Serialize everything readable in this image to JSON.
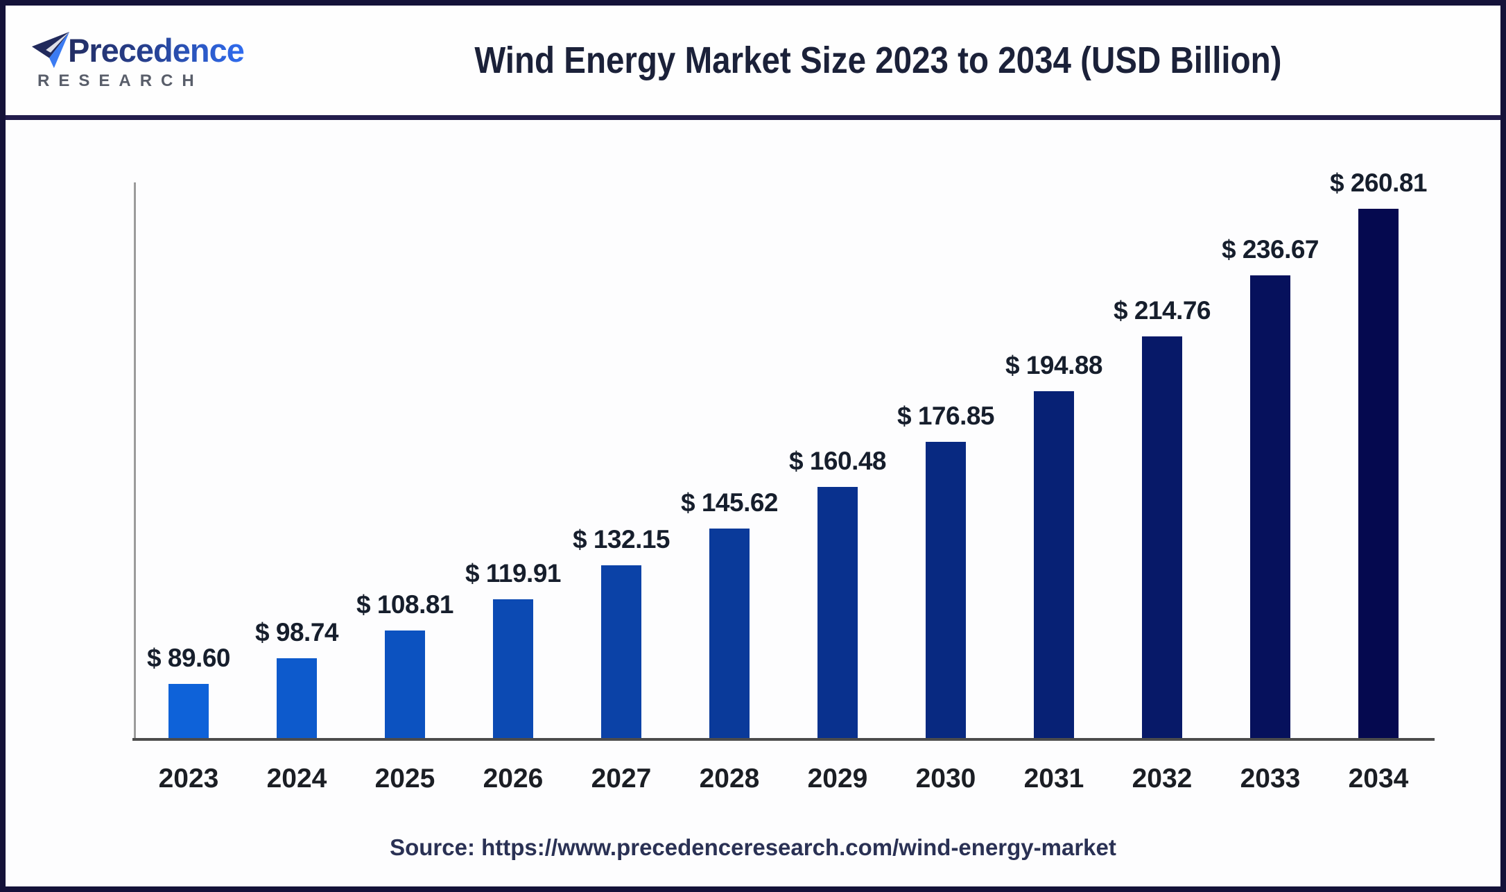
{
  "brand": {
    "name": "Precedence",
    "subname": "RESEARCH"
  },
  "header": {
    "title": "Wind Energy Market Size 2023 to 2034 (USD Billion)"
  },
  "source": {
    "text": "Source: https://www.precedenceresearch.com/wind-energy-market"
  },
  "chart_data": {
    "type": "bar",
    "title": "Wind Energy Market Size 2023 to 2034 (USD Billion)",
    "unit": "USD Billion",
    "categories": [
      "2023",
      "2024",
      "2025",
      "2026",
      "2027",
      "2028",
      "2029",
      "2030",
      "2031",
      "2032",
      "2033",
      "2034"
    ],
    "values": [
      89.6,
      98.74,
      108.81,
      119.91,
      132.15,
      145.62,
      160.48,
      176.85,
      194.88,
      214.76,
      236.67,
      260.81
    ],
    "value_prefix": "$ ",
    "xlabel": "",
    "ylabel": "",
    "ylim": [
      70,
      270
    ],
    "grid": false,
    "legend": false,
    "bar_color_start": "#0E62D9",
    "bar_color_end": "#05094F"
  },
  "colors": {
    "frame_border": "#141239",
    "header_divider": "#231D4C",
    "title_text": "#1B2139",
    "value_label_text": "#161E2C",
    "year_label_text": "#1B1E24",
    "source_text": "#2A3154",
    "y_axis_line": "#9B9B9B",
    "x_axis_line": "#4C4C4C",
    "brand_gradient_start": "#232D63",
    "brand_gradient_end": "#2F6CF0",
    "brand_sub_text": "#595E6A"
  }
}
